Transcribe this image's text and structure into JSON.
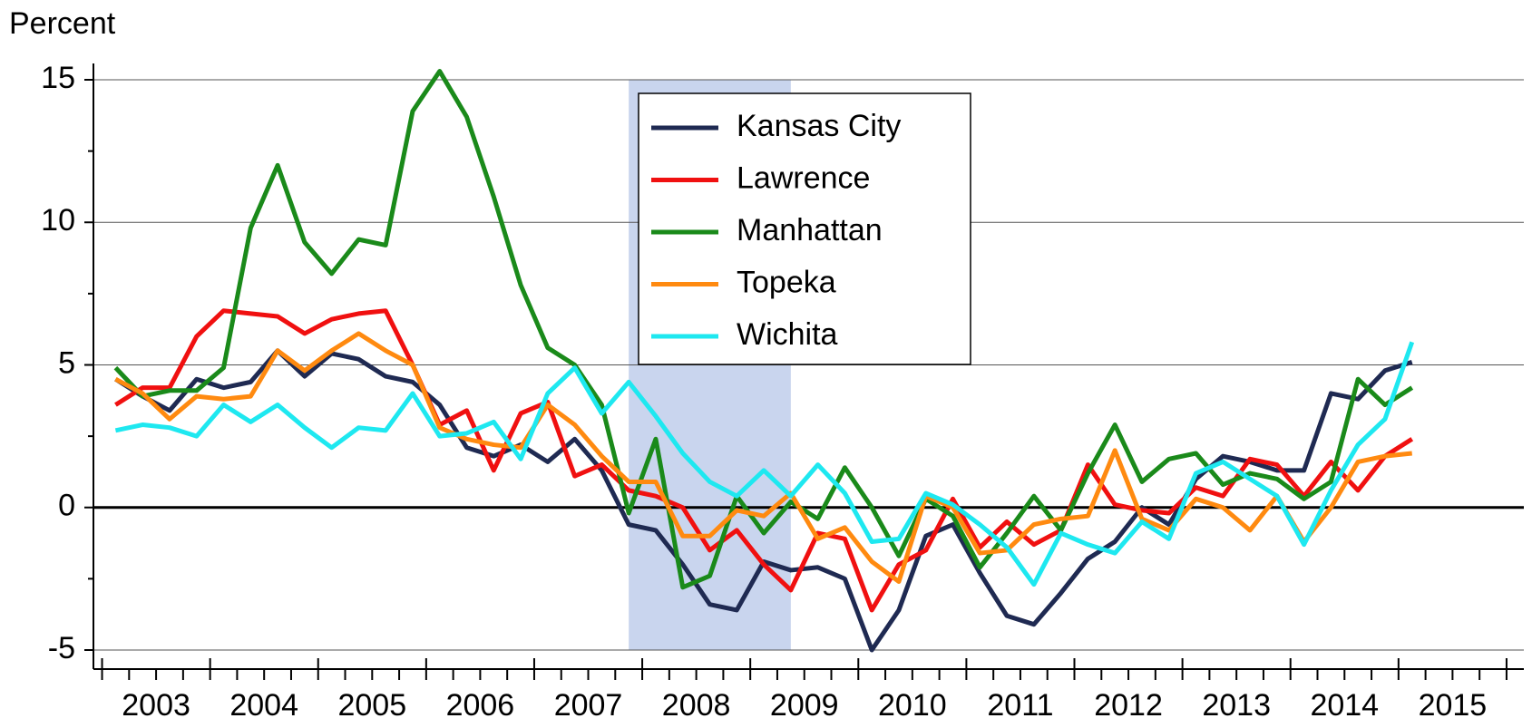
{
  "chart_data": {
    "type": "line",
    "ylabel": "Percent",
    "x": [
      2003.125,
      2003.375,
      2003.625,
      2003.875,
      2004.125,
      2004.375,
      2004.625,
      2004.875,
      2005.125,
      2005.375,
      2005.625,
      2005.875,
      2006.125,
      2006.375,
      2006.625,
      2006.875,
      2007.125,
      2007.375,
      2007.625,
      2007.875,
      2008.125,
      2008.375,
      2008.625,
      2008.875,
      2009.125,
      2009.375,
      2009.625,
      2009.875,
      2010.125,
      2010.375,
      2010.625,
      2010.875,
      2011.125,
      2011.375,
      2011.625,
      2011.875,
      2012.125,
      2012.375,
      2012.625,
      2012.875,
      2013.125,
      2013.375,
      2013.625,
      2013.875,
      2014.125,
      2014.375,
      2014.625,
      2014.875,
      2015.125
    ],
    "xlim": [
      2002.92,
      2016.16
    ],
    "xticks": [
      2003,
      2004,
      2005,
      2006,
      2007,
      2008,
      2009,
      2010,
      2011,
      2012,
      2013,
      2014,
      2015,
      2016
    ],
    "xtick_labels": [
      2003,
      2004,
      2005,
      2006,
      2007,
      2008,
      2009,
      2010,
      2011,
      2012,
      2013,
      2014,
      2015
    ],
    "ylim": [
      -5,
      15
    ],
    "yticks": [
      -5,
      0,
      5,
      10,
      15
    ],
    "grid": true,
    "shaded_x": [
      2007.875,
      2009.375
    ],
    "shade_color": "#c9d5ee",
    "legend": "upper center",
    "series": [
      {
        "name": "Kansas City",
        "color": "#1f2a52",
        "values": [
          4.5,
          3.9,
          3.4,
          4.5,
          4.2,
          4.4,
          5.5,
          4.6,
          5.4,
          5.2,
          4.6,
          4.4,
          3.6,
          2.1,
          1.8,
          2.2,
          1.6,
          2.4,
          1.3,
          -0.6,
          -0.8,
          -2.0,
          -3.4,
          -3.6,
          -1.9,
          -2.2,
          -2.1,
          -2.5,
          -5.0,
          -3.6,
          -1.0,
          -0.6,
          -2.3,
          -3.8,
          -4.1,
          -3.0,
          -1.8,
          -1.2,
          0.0,
          -0.6,
          1.0,
          1.8,
          1.6,
          1.3,
          1.3,
          4.0,
          3.8,
          4.8,
          5.1
        ]
      },
      {
        "name": "Lawrence",
        "color": "#f01010",
        "values": [
          3.6,
          4.2,
          4.2,
          6.0,
          6.9,
          6.8,
          6.7,
          6.1,
          6.6,
          6.8,
          6.9,
          5.0,
          2.9,
          3.4,
          1.3,
          3.3,
          3.7,
          1.1,
          1.5,
          0.6,
          0.4,
          0.0,
          -1.5,
          -0.8,
          -2.0,
          -2.9,
          -0.9,
          -1.1,
          -3.6,
          -2.0,
          -1.5,
          0.3,
          -1.4,
          -0.5,
          -1.3,
          -0.8,
          1.5,
          0.1,
          -0.1,
          -0.2,
          0.7,
          0.4,
          1.7,
          1.5,
          0.4,
          1.6,
          0.6,
          1.8,
          2.4
        ]
      },
      {
        "name": "Manhattan",
        "color": "#1a8a1a",
        "values": [
          4.9,
          3.9,
          4.1,
          4.1,
          4.9,
          9.8,
          12.0,
          9.3,
          8.2,
          9.4,
          9.2,
          13.9,
          15.3,
          13.7,
          10.9,
          7.8,
          5.6,
          5.0,
          3.6,
          -0.2,
          2.4,
          -2.8,
          -2.4,
          0.4,
          -0.9,
          0.2,
          -0.4,
          1.4,
          0.0,
          -1.7,
          0.3,
          -0.3,
          -2.1,
          -0.9,
          0.4,
          -0.8,
          1.2,
          2.9,
          0.9,
          1.7,
          1.9,
          0.8,
          1.2,
          1.0,
          0.3,
          0.9,
          4.5,
          3.6,
          4.2
        ]
      },
      {
        "name": "Topeka",
        "color": "#ff8a10",
        "values": [
          4.5,
          4.0,
          3.1,
          3.9,
          3.8,
          3.9,
          5.5,
          4.8,
          5.5,
          6.1,
          5.5,
          5.0,
          2.8,
          2.4,
          2.2,
          2.1,
          3.6,
          2.9,
          1.8,
          0.9,
          0.9,
          -1.0,
          -1.0,
          -0.1,
          -0.3,
          0.5,
          -1.1,
          -0.7,
          -1.9,
          -2.6,
          0.4,
          0.0,
          -1.6,
          -1.5,
          -0.6,
          -0.4,
          -0.3,
          2.0,
          -0.4,
          -0.8,
          0.3,
          0.0,
          -0.8,
          0.4,
          -1.2,
          0.0,
          1.6,
          1.8,
          1.9
        ]
      },
      {
        "name": "Wichita",
        "color": "#1ee8f0",
        "values": [
          2.7,
          2.9,
          2.8,
          2.5,
          3.6,
          3.0,
          3.6,
          2.8,
          2.1,
          2.8,
          2.7,
          4.0,
          2.5,
          2.6,
          3.0,
          1.7,
          4.0,
          4.9,
          3.3,
          4.4,
          3.2,
          1.9,
          0.9,
          0.4,
          1.3,
          0.4,
          1.5,
          0.5,
          -1.2,
          -1.1,
          0.5,
          0.1,
          -0.6,
          -1.4,
          -2.7,
          -0.9,
          -1.3,
          -1.6,
          -0.5,
          -1.1,
          1.2,
          1.6,
          1.0,
          0.4,
          -1.3,
          0.6,
          2.2,
          3.1,
          5.8
        ]
      }
    ]
  }
}
